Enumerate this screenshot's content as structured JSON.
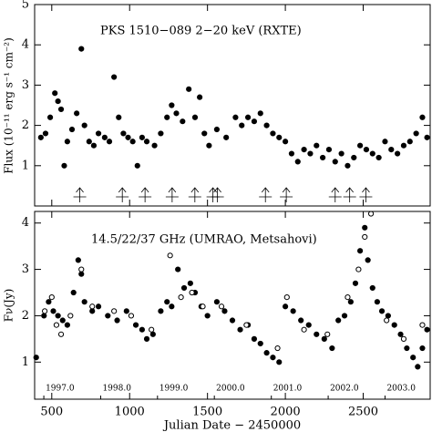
{
  "chart_data": [
    {
      "type": "scatter",
      "title": "PKS 1510−089   2−20 keV (RXTE)",
      "y_label": "Flux (10⁻¹¹ erg s⁻¹ cm⁻²)",
      "xlim": [
        390,
        2930
      ],
      "ylim": [
        0,
        5
      ],
      "yticks": [
        1,
        2,
        3,
        4,
        5
      ],
      "xticks": [
        500,
        1000,
        1500,
        2000,
        2500
      ],
      "arrows": [
        680,
        953,
        1099,
        1273,
        1419,
        1535,
        1564,
        1872,
        2006,
        2320,
        2413,
        2517
      ],
      "series": [
        {
          "name": "RXTE",
          "color": "#000000",
          "marker": "filled",
          "x": [
            430,
            460,
            490,
            520,
            540,
            560,
            580,
            600,
            630,
            660,
            690,
            710,
            740,
            770,
            800,
            840,
            870,
            900,
            930,
            960,
            990,
            1020,
            1050,
            1080,
            1110,
            1160,
            1200,
            1240,
            1270,
            1300,
            1340,
            1380,
            1420,
            1450,
            1480,
            1510,
            1560,
            1620,
            1680,
            1720,
            1760,
            1800,
            1840,
            1880,
            1920,
            1960,
            2000,
            2040,
            2080,
            2120,
            2160,
            2200,
            2240,
            2280,
            2320,
            2360,
            2400,
            2440,
            2480,
            2520,
            2560,
            2600,
            2640,
            2680,
            2720,
            2760,
            2800,
            2840,
            2880,
            2910
          ],
          "y": [
            1.7,
            1.8,
            2.2,
            2.8,
            2.6,
            2.4,
            1.0,
            1.6,
            1.9,
            2.3,
            3.9,
            2.0,
            1.6,
            1.5,
            1.8,
            1.7,
            1.6,
            3.2,
            2.2,
            1.8,
            1.7,
            1.6,
            1.0,
            1.7,
            1.6,
            1.5,
            1.8,
            2.2,
            2.5,
            2.3,
            2.1,
            2.9,
            2.2,
            2.7,
            1.8,
            1.5,
            1.9,
            1.7,
            2.2,
            2.0,
            2.2,
            2.1,
            2.3,
            2.0,
            1.8,
            1.7,
            1.6,
            1.3,
            1.1,
            1.4,
            1.3,
            1.5,
            1.2,
            1.4,
            1.1,
            1.3,
            1.0,
            1.2,
            1.5,
            1.4,
            1.3,
            1.2,
            1.6,
            1.4,
            1.3,
            1.5,
            1.6,
            1.8,
            2.2,
            1.7
          ]
        }
      ]
    },
    {
      "type": "scatter",
      "title": "14.5/22/37 GHz (UMRAO, Metsahovi)",
      "y_label": "Fν(Jy)",
      "x_label": "Julian Date − 2450000",
      "xlim": [
        390,
        2930
      ],
      "ylim": [
        0.2,
        4.25
      ],
      "yticks": [
        1,
        2,
        3,
        4
      ],
      "xticks": [
        500,
        1000,
        1500,
        2000,
        2500
      ],
      "year_ticks": [
        {
          "value": 449,
          "label": "1997.0"
        },
        {
          "value": 814,
          "label": "1998.0"
        },
        {
          "value": 1179,
          "label": "1999.0"
        },
        {
          "value": 1544,
          "label": "2000.0"
        },
        {
          "value": 1910,
          "label": "2001.0"
        },
        {
          "value": 2275,
          "label": "2002.0"
        },
        {
          "value": 2640,
          "label": "2003.0"
        }
      ],
      "series": [
        {
          "name": "UMRAO",
          "color": "#000000",
          "marker": "filled",
          "x": [
            400,
            450,
            480,
            510,
            540,
            570,
            600,
            640,
            670,
            690,
            710,
            760,
            800,
            860,
            920,
            980,
            1040,
            1080,
            1110,
            1150,
            1200,
            1240,
            1270,
            1310,
            1350,
            1390,
            1420,
            1460,
            1500,
            1560,
            1610,
            1660,
            1710,
            1760,
            1800,
            1840,
            1880,
            1920,
            1960,
            2000,
            2050,
            2100,
            2150,
            2200,
            2250,
            2300,
            2340,
            2380,
            2420,
            2450,
            2480,
            2510,
            2530,
            2560,
            2590,
            2620,
            2660,
            2700,
            2740,
            2780,
            2820,
            2850,
            2880,
            2910
          ],
          "y": [
            1.1,
            2.0,
            2.3,
            2.1,
            2.0,
            1.9,
            1.8,
            2.5,
            3.2,
            2.9,
            2.3,
            2.1,
            2.2,
            2.0,
            1.9,
            2.1,
            1.8,
            1.7,
            1.5,
            1.6,
            2.1,
            2.3,
            2.2,
            3.0,
            2.6,
            2.7,
            2.5,
            2.2,
            2.0,
            2.3,
            2.1,
            1.9,
            1.7,
            1.8,
            1.5,
            1.4,
            1.2,
            1.1,
            1.0,
            2.2,
            2.1,
            1.9,
            1.8,
            1.6,
            1.5,
            1.3,
            1.9,
            2.0,
            2.3,
            2.7,
            3.4,
            3.9,
            3.2,
            2.6,
            2.3,
            2.1,
            2.0,
            1.8,
            1.6,
            1.3,
            1.1,
            0.9,
            1.3,
            1.7
          ]
        },
        {
          "name": "Metsahovi",
          "color": "#000000",
          "marker": "open",
          "x": [
            455,
            500,
            530,
            560,
            620,
            690,
            760,
            900,
            1010,
            1140,
            1260,
            1330,
            1400,
            1470,
            1590,
            1750,
            1950,
            2010,
            2120,
            2270,
            2400,
            2470,
            2510,
            2550,
            2650,
            2760,
            2880
          ],
          "y": [
            2.1,
            2.4,
            1.8,
            1.6,
            2.0,
            3.0,
            2.2,
            2.1,
            2.0,
            1.7,
            3.3,
            2.4,
            2.5,
            2.2,
            2.2,
            1.8,
            1.3,
            2.4,
            1.7,
            1.6,
            2.4,
            3.0,
            3.7,
            4.2,
            1.9,
            1.5,
            1.8
          ]
        }
      ]
    }
  ]
}
